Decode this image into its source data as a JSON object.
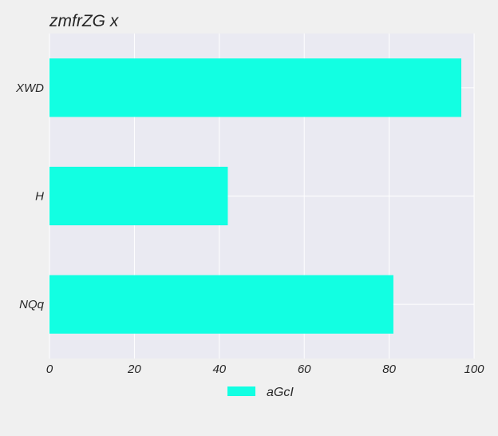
{
  "chart_data": {
    "type": "bar",
    "orientation": "horizontal",
    "title": "zmfrZG x",
    "categories": [
      "XWD",
      "H",
      "NQq"
    ],
    "series": [
      {
        "name": "aGcI",
        "values": [
          97,
          42,
          81
        ],
        "color": "#12ffe2"
      }
    ],
    "xlabel": "",
    "ylabel": "",
    "xlim": [
      0,
      100
    ],
    "xticks": [
      0,
      20,
      40,
      60,
      80,
      100
    ],
    "xtick_labels": [
      "0",
      "20",
      "40",
      "60",
      "80",
      "100"
    ],
    "grid": true,
    "legend_position": "bottom-center",
    "plot_background": "#eaeaf2",
    "page_background": "#f0f0f0"
  }
}
